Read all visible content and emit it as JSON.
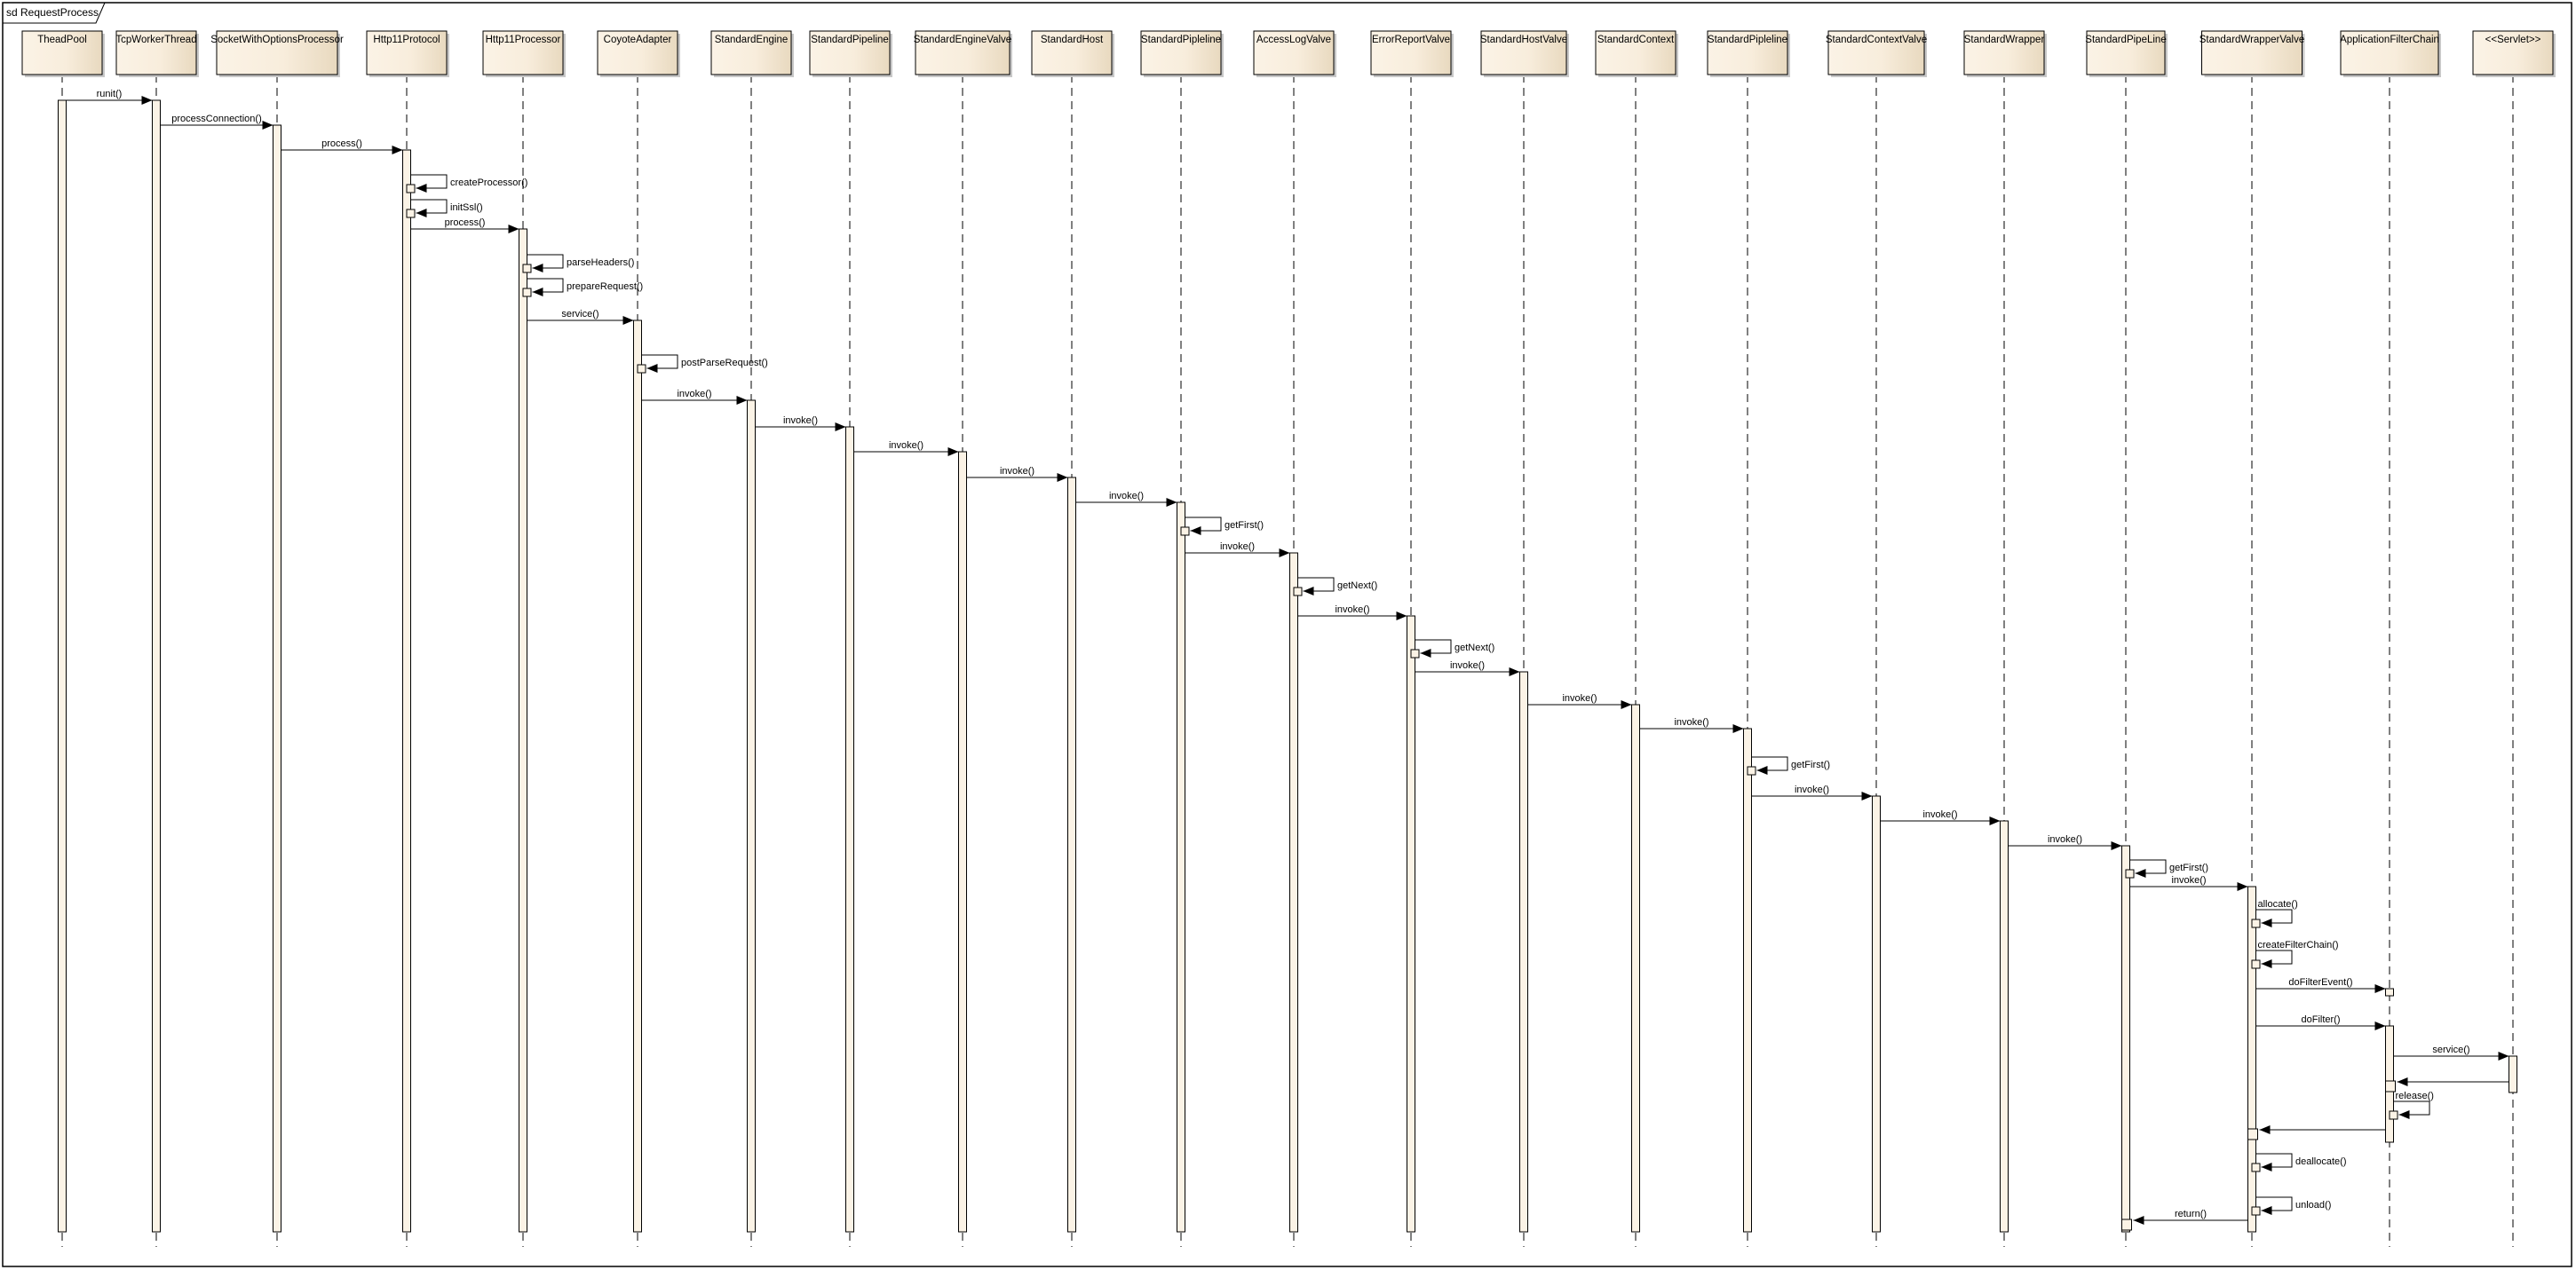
{
  "frame": {
    "title": "sd RequestProcess"
  },
  "colors": {
    "lifeline_fill_light": "#fbf3e6",
    "lifeline_fill_dark": "#e8d9bf",
    "activation_fill": "#fbf3e6",
    "line": "#000000"
  },
  "lifelines": [
    "TheadPool",
    "TcpWorkerThread",
    "SocketWithOptionsProcessor",
    "Http11Protocol",
    "Http11Processor",
    "CoyoteAdapter",
    "StandardEngine",
    "StandardPipeline",
    "StandardEngineValve",
    "StandardHost",
    "StandardPipleline",
    "AccessLogValve",
    "ErrorReportValve",
    "StandardHostValve",
    "StandardContext",
    "StandardPipleline",
    "StandardContextValve",
    "StandardWrapper",
    "StandardPipeLine",
    "StandardWrapperValve",
    "ApplicationFilterChain",
    "<<Servlet>>"
  ],
  "messages": [
    {
      "type": "call",
      "from": 0,
      "to": 1,
      "label": "runit()"
    },
    {
      "type": "call",
      "from": 1,
      "to": 2,
      "label": "processConnection()"
    },
    {
      "type": "call",
      "from": 2,
      "to": 3,
      "label": "process()"
    },
    {
      "type": "self",
      "from": 3,
      "to": 3,
      "label": "createProcessor()"
    },
    {
      "type": "self",
      "from": 3,
      "to": 3,
      "label": "initSsl()"
    },
    {
      "type": "call",
      "from": 3,
      "to": 4,
      "label": "process()"
    },
    {
      "type": "self",
      "from": 4,
      "to": 4,
      "label": "parseHeaders()"
    },
    {
      "type": "self",
      "from": 4,
      "to": 4,
      "label": "prepareRequest()"
    },
    {
      "type": "call",
      "from": 4,
      "to": 5,
      "label": "service()"
    },
    {
      "type": "self",
      "from": 5,
      "to": 5,
      "label": "postParseRequest()"
    },
    {
      "type": "call",
      "from": 5,
      "to": 6,
      "label": "invoke()"
    },
    {
      "type": "call",
      "from": 6,
      "to": 7,
      "label": "invoke()"
    },
    {
      "type": "call",
      "from": 7,
      "to": 8,
      "label": "invoke()"
    },
    {
      "type": "call",
      "from": 8,
      "to": 9,
      "label": "invoke()"
    },
    {
      "type": "call",
      "from": 9,
      "to": 10,
      "label": "invoke()"
    },
    {
      "type": "self",
      "from": 10,
      "to": 10,
      "label": "getFirst()"
    },
    {
      "type": "call",
      "from": 10,
      "to": 11,
      "label": "invoke()"
    },
    {
      "type": "self",
      "from": 11,
      "to": 11,
      "label": "getNext()"
    },
    {
      "type": "call",
      "from": 11,
      "to": 12,
      "label": "invoke()"
    },
    {
      "type": "self",
      "from": 12,
      "to": 12,
      "label": "getNext()"
    },
    {
      "type": "call",
      "from": 12,
      "to": 13,
      "label": "invoke()"
    },
    {
      "type": "call",
      "from": 13,
      "to": 14,
      "label": "invoke()"
    },
    {
      "type": "call",
      "from": 14,
      "to": 15,
      "label": "invoke()"
    },
    {
      "type": "self",
      "from": 15,
      "to": 15,
      "label": "getFirst()"
    },
    {
      "type": "call",
      "from": 15,
      "to": 16,
      "label": "invoke()"
    },
    {
      "type": "call",
      "from": 16,
      "to": 17,
      "label": "invoke()"
    },
    {
      "type": "call",
      "from": 17,
      "to": 18,
      "label": "invoke()"
    },
    {
      "type": "self",
      "from": 18,
      "to": 18,
      "label": "getFirst()"
    },
    {
      "type": "call",
      "from": 18,
      "to": 19,
      "label": "invoke()"
    },
    {
      "type": "self",
      "from": 19,
      "to": 19,
      "label": "allocate()"
    },
    {
      "type": "self",
      "from": 19,
      "to": 19,
      "label": "createFilterChain()"
    },
    {
      "type": "call",
      "from": 19,
      "to": 20,
      "label": "doFilterEvent()"
    },
    {
      "type": "call",
      "from": 19,
      "to": 20,
      "label": "doFilter()"
    },
    {
      "type": "call",
      "from": 20,
      "to": 21,
      "label": "service()"
    },
    {
      "type": "return",
      "from": 21,
      "to": 20,
      "label": ""
    },
    {
      "type": "self",
      "from": 20,
      "to": 20,
      "label": "release()"
    },
    {
      "type": "return",
      "from": 20,
      "to": 19,
      "label": ""
    },
    {
      "type": "self",
      "from": 19,
      "to": 19,
      "label": "deallocate()"
    },
    {
      "type": "self",
      "from": 19,
      "to": 19,
      "label": "unload()"
    },
    {
      "type": "return",
      "from": 19,
      "to": 18,
      "label": "return()"
    }
  ]
}
